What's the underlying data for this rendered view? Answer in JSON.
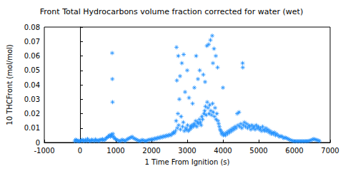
{
  "chart_data": {
    "type": "scatter",
    "title": "Front Total Hydrocarbons volume fraction corrected for water (wet)",
    "x_label": "1 Time From Ignition (s)",
    "y_label": "10 THCFront (mol/mol)",
    "color": "#1e90ff",
    "marker": "asterisk",
    "grid": false,
    "xlim": [
      -1000,
      7000
    ],
    "xticks": [
      -1000,
      0,
      1000,
      2000,
      3000,
      4000,
      5000,
      6000,
      7000
    ],
    "ylim": [
      0,
      0.08
    ],
    "yticks": [
      0,
      0.01,
      0.02,
      0.03,
      0.04,
      0.05,
      0.06,
      0.07,
      0.08
    ],
    "x": [
      -150,
      -120,
      -100,
      -80,
      -50,
      -20,
      0,
      30,
      60,
      90,
      120,
      150,
      180,
      210,
      240,
      270,
      300,
      330,
      360,
      400,
      430,
      460,
      500,
      530,
      560,
      600,
      630,
      660,
      700,
      730,
      760,
      790,
      820,
      850,
      870,
      890,
      900,
      905,
      910,
      920,
      940,
      960,
      990,
      1020,
      1060,
      1100,
      1140,
      1180,
      1220,
      1260,
      1300,
      1340,
      1380,
      1420,
      1460,
      1500,
      1540,
      1580,
      1620,
      1660,
      1700,
      1740,
      1780,
      1820,
      1860,
      1900,
      1940,
      1980,
      2020,
      2060,
      2100,
      2140,
      2180,
      2220,
      2260,
      2300,
      2340,
      2380,
      2420,
      2460,
      2500,
      2540,
      2580,
      2610,
      2640,
      2670,
      2690,
      2700,
      2710,
      2720,
      2740,
      2750,
      2760,
      2780,
      2800,
      2810,
      2830,
      2850,
      2870,
      2890,
      2900,
      2920,
      2940,
      2960,
      2980,
      3000,
      3010,
      3030,
      3050,
      3070,
      3090,
      3110,
      3130,
      3150,
      3170,
      3190,
      3200,
      3220,
      3240,
      3250,
      3270,
      3290,
      3300,
      3320,
      3340,
      3350,
      3370,
      3390,
      3410,
      3430,
      3450,
      3470,
      3490,
      3500,
      3510,
      3530,
      3550,
      3560,
      3580,
      3600,
      3610,
      3630,
      3650,
      3660,
      3680,
      3700,
      3710,
      3720,
      3730,
      3750,
      3760,
      3780,
      3800,
      3810,
      3830,
      3850,
      3860,
      3880,
      3900,
      3920,
      3940,
      3960,
      3980,
      4000,
      4010,
      4040,
      4070,
      4100,
      4130,
      4160,
      4190,
      4220,
      4250,
      4280,
      4310,
      4340,
      4370,
      4400,
      4420,
      4450,
      4470,
      4500,
      4530,
      4550,
      4555,
      4570,
      4600,
      4630,
      4660,
      4690,
      4720,
      4750,
      4780,
      4810,
      4840,
      4870,
      4900,
      4930,
      4960,
      4990,
      5020,
      5050,
      5080,
      5110,
      5140,
      5170,
      5200,
      5230,
      5260,
      5290,
      5320,
      5350,
      5380,
      5410,
      5440,
      5470,
      5500,
      5540,
      5580,
      5620,
      5660,
      5700,
      5740,
      5780,
      5820,
      5860,
      5900,
      5940,
      5980,
      6020,
      6060,
      6100,
      6140,
      6180,
      6220,
      6260,
      6300,
      6340,
      6380,
      6420,
      6460,
      6500,
      6540,
      6580,
      6620,
      6660,
      6700
    ],
    "values": [
      0.001,
      0.002,
      0.0015,
      0.001,
      0.0012,
      0.0008,
      0.001,
      0.0015,
      0.002,
      0.001,
      0.0012,
      0.0018,
      0.001,
      0.0025,
      0.0015,
      0.001,
      0.0012,
      0.002,
      0.0014,
      0.001,
      0.0022,
      0.0013,
      0.0015,
      0.001,
      0.002,
      0.0018,
      0.0024,
      0.0015,
      0.002,
      0.003,
      0.0035,
      0.004,
      0.005,
      0.004,
      0.0055,
      0.0045,
      0.062,
      0.044,
      0.028,
      0.006,
      0.004,
      0.003,
      0.0025,
      0.002,
      0.0015,
      0.001,
      0.0012,
      0.002,
      0.0015,
      0.001,
      0.0018,
      0.0025,
      0.003,
      0.0035,
      0.004,
      0.003,
      0.0025,
      0.002,
      0.0015,
      0.001,
      0.0012,
      0.0018,
      0.0015,
      0.001,
      0.0012,
      0.0016,
      0.002,
      0.0018,
      0.0025,
      0.002,
      0.003,
      0.0025,
      0.0035,
      0.003,
      0.004,
      0.0035,
      0.0045,
      0.004,
      0.005,
      0.0045,
      0.0055,
      0.005,
      0.006,
      0.007,
      0.0065,
      0.008,
      0.015,
      0.066,
      0.043,
      0.01,
      0.02,
      0.06,
      0.012,
      0.03,
      0.046,
      0.009,
      0.018,
      0.055,
      0.011,
      0.014,
      0.061,
      0.008,
      0.035,
      0.01,
      0.009,
      0.05,
      0.012,
      0.008,
      0.031,
      0.009,
      0.011,
      0.01,
      0.012,
      0.027,
      0.011,
      0.013,
      0.038,
      0.012,
      0.015,
      0.06,
      0.011,
      0.014,
      0.044,
      0.013,
      0.016,
      0.05,
      0.014,
      0.012,
      0.018,
      0.016,
      0.047,
      0.02,
      0.022,
      0.042,
      0.025,
      0.019,
      0.067,
      0.028,
      0.024,
      0.068,
      0.02,
      0.026,
      0.071,
      0.022,
      0.019,
      0.074,
      0.027,
      0.055,
      0.021,
      0.065,
      0.018,
      0.024,
      0.06,
      0.016,
      0.02,
      0.052,
      0.015,
      0.013,
      0.011,
      0.009,
      0.008,
      0.006,
      0.007,
      0.038,
      0.005,
      0.006,
      0.005,
      0.007,
      0.006,
      0.008,
      0.007,
      0.009,
      0.008,
      0.01,
      0.009,
      0.011,
      0.01,
      0.02,
      0.012,
      0.021,
      0.011,
      0.013,
      0.01,
      0.055,
      0.052,
      0.012,
      0.014,
      0.011,
      0.013,
      0.01,
      0.012,
      0.011,
      0.009,
      0.012,
      0.01,
      0.011,
      0.009,
      0.012,
      0.01,
      0.011,
      0.009,
      0.01,
      0.008,
      0.011,
      0.009,
      0.008,
      0.01,
      0.008,
      0.009,
      0.007,
      0.008,
      0.006,
      0.007,
      0.006,
      0.007,
      0.005,
      0.006,
      0.005,
      0.004,
      0.0045,
      0.004,
      0.003,
      0.0035,
      0.003,
      0.0025,
      0.002,
      0.0015,
      0.0012,
      0.001,
      0.0008,
      0.001,
      0.0008,
      0.001,
      0.0008,
      0.001,
      0.0008,
      0.001,
      0.0009,
      0.001,
      0.0012,
      0.0015,
      0.002,
      0.0025,
      0.002,
      0.0018,
      0.0015,
      0.001
    ]
  }
}
